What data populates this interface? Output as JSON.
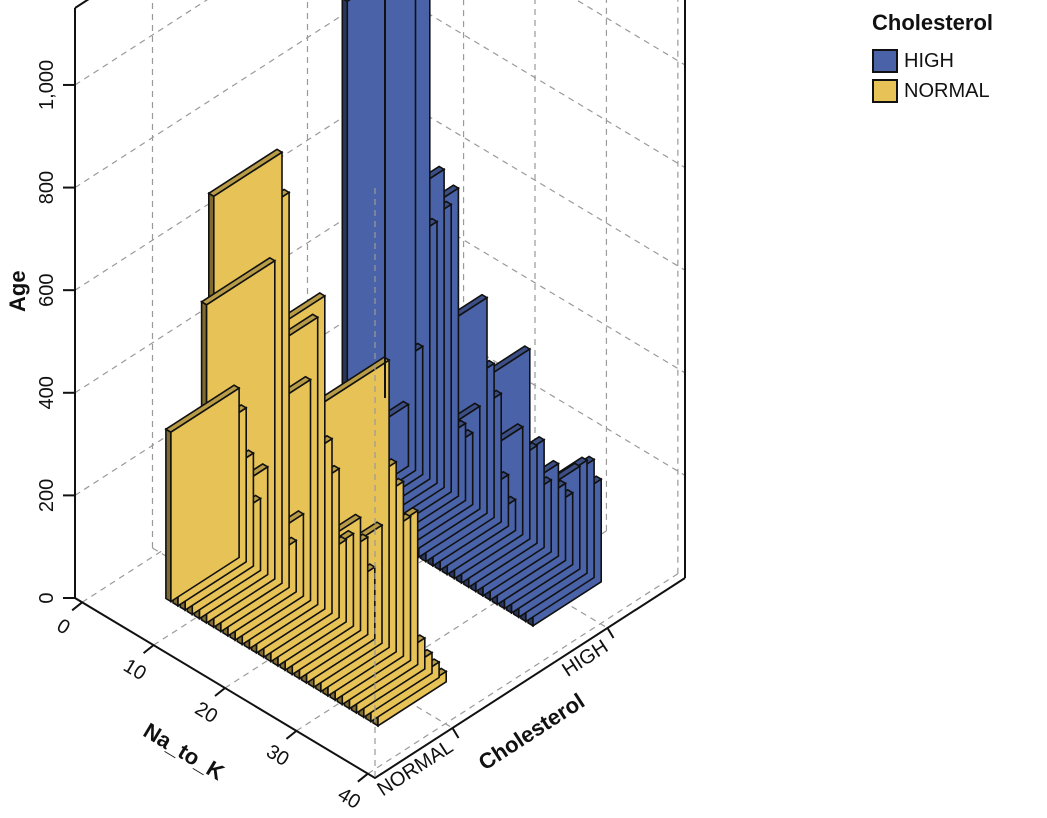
{
  "chart_data": {
    "type": "bar",
    "variant": "3d-bar",
    "zlabel": "Age",
    "xlabel": "Na_to_K",
    "ylabel": "Cholesterol",
    "z_ticks": [
      "0",
      "200",
      "400",
      "600",
      "800",
      "1,000"
    ],
    "z_tick_values": [
      0,
      200,
      400,
      600,
      800,
      1000
    ],
    "zlim": [
      0,
      1150
    ],
    "x_ticks": [
      "0",
      "10",
      "20",
      "30",
      "40"
    ],
    "x_tick_values": [
      0,
      10,
      20,
      30,
      40
    ],
    "xlim": [
      -1,
      41
    ],
    "categories": [
      "NORMAL",
      "HIGH"
    ],
    "grid": true,
    "legend": {
      "title": "Cholesterol",
      "position": "top-right",
      "items": [
        {
          "label": "HIGH",
          "color": "#4a63a8"
        },
        {
          "label": "NORMAL",
          "color": "#e6c257"
        }
      ]
    },
    "series": [
      {
        "name": "NORMAL",
        "color": "#e6c257",
        "x": [
          6,
          7,
          8,
          9,
          10,
          11,
          12,
          13,
          14,
          15,
          16,
          17,
          18,
          19,
          20,
          21,
          22,
          23,
          24,
          25,
          26,
          27,
          28,
          29,
          30,
          31,
          32,
          33,
          34,
          35
        ],
        "values": [
          330,
          300,
          220,
          140,
          210,
          620,
          840,
          770,
          100,
          160,
          430,
          560,
          610,
          340,
          290,
          160,
          180,
          220,
          190,
          140,
          230,
          560,
          370,
          340,
          280,
          300,
          60,
          40,
          30,
          20
        ]
      },
      {
        "name": "HIGH",
        "color": "#4a63a8",
        "x": [
          8,
          9,
          10,
          11,
          12,
          13,
          14,
          15,
          16,
          17,
          18,
          19,
          20,
          21,
          22,
          23,
          24,
          25,
          26,
          27,
          28,
          29,
          30,
          31,
          32,
          33,
          34,
          35
        ],
        "values": [
          120,
          1000,
          250,
          1050,
          510,
          620,
          560,
          600,
          150,
          140,
          200,
          420,
          300,
          250,
          100,
          60,
          210,
          370,
          190,
          210,
          140,
          180,
          150,
          140,
          200,
          220,
          230,
          200
        ]
      }
    ]
  }
}
